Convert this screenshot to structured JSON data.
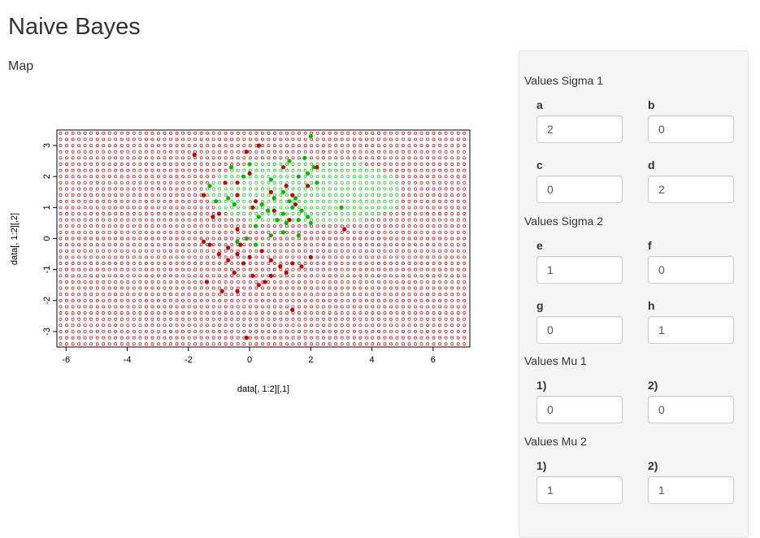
{
  "app": {
    "title": "Naive Bayes"
  },
  "map": {
    "label": "Map"
  },
  "sidebar": {
    "groups": [
      {
        "title": "Values Sigma 1",
        "fields": [
          {
            "label": "a",
            "value": "2"
          },
          {
            "label": "b",
            "value": "0"
          },
          {
            "label": "c",
            "value": "0"
          },
          {
            "label": "d",
            "value": "2"
          }
        ]
      },
      {
        "title": "Values Sigma 2",
        "fields": [
          {
            "label": "e",
            "value": "1"
          },
          {
            "label": "f",
            "value": "0"
          },
          {
            "label": "g",
            "value": "0"
          },
          {
            "label": "h",
            "value": "1"
          }
        ]
      },
      {
        "title": "Values Mu 1",
        "fields": [
          {
            "label": "1)",
            "value": "0"
          },
          {
            "label": "2)",
            "value": "0"
          }
        ]
      },
      {
        "title": "Values Mu 2",
        "fields": [
          {
            "label": "1)",
            "value": "1"
          },
          {
            "label": "2)",
            "value": "1"
          }
        ]
      }
    ]
  },
  "chart_data": {
    "type": "scatter",
    "xlabel": "data[, 1:2][,1]",
    "ylabel": "data[, 1:2][,2]",
    "xlim": [
      -6.3,
      7.2
    ],
    "ylim": [
      -3.5,
      3.5
    ],
    "x_ticks": [
      "-6",
      "-4",
      "-2",
      "0",
      "2",
      "4",
      "6"
    ],
    "y_ticks": [
      "-3",
      "-2",
      "-1",
      "0",
      "1",
      "2",
      "3"
    ],
    "grid": {
      "background_class_color": "#cc0000",
      "region_class_color": "#00cc00",
      "region_ellipse": {
        "center": [
          1.8,
          1.5
        ],
        "radius_x": 3.2,
        "radius_y": 1.1
      }
    },
    "series": [
      {
        "color": "#00bb00",
        "points": [
          [
            0.3,
            3.0
          ],
          [
            2.0,
            3.3
          ],
          [
            1.3,
            2.5
          ],
          [
            1.8,
            2.6
          ],
          [
            2.1,
            2.3
          ],
          [
            0.0,
            2.4
          ],
          [
            -0.6,
            2.3
          ],
          [
            -0.2,
            2.0
          ],
          [
            0.7,
            1.9
          ],
          [
            1.6,
            2.0
          ],
          [
            2.2,
            1.8
          ],
          [
            1.1,
            1.5
          ],
          [
            0.8,
            1.3
          ],
          [
            1.9,
            1.7
          ],
          [
            1.3,
            1.2
          ],
          [
            0.4,
            1.1
          ],
          [
            -0.7,
            1.3
          ],
          [
            -1.1,
            1.2
          ],
          [
            -0.5,
            1.1
          ],
          [
            -1.3,
            1.7
          ],
          [
            0.6,
            0.9
          ],
          [
            1.1,
            0.8
          ],
          [
            1.7,
            0.9
          ],
          [
            3.0,
            1.0
          ],
          [
            0.9,
            0.6
          ],
          [
            1.6,
            0.6
          ],
          [
            1.2,
            0.5
          ],
          [
            1.9,
            0.7
          ],
          [
            0.3,
            0.7
          ],
          [
            1.1,
            0.2
          ],
          [
            1.6,
            0.1
          ],
          [
            0.7,
            0.1
          ],
          [
            -0.1,
            0.0
          ],
          [
            0.2,
            0.4
          ],
          [
            2.0,
            0.5
          ],
          [
            1.4,
            1.0
          ],
          [
            -0.4,
            -0.1
          ],
          [
            0.2,
            -0.2
          ],
          [
            1.5,
            1.3
          ],
          [
            1.9,
            2.1
          ]
        ]
      },
      {
        "color": "#cc0000",
        "points": [
          [
            -1.8,
            2.7
          ],
          [
            -0.1,
            2.8
          ],
          [
            0.3,
            3.0
          ],
          [
            1.1,
            2.3
          ],
          [
            2.2,
            2.3
          ],
          [
            0.0,
            2.1
          ],
          [
            -0.8,
            1.8
          ],
          [
            1.2,
            1.7
          ],
          [
            1.9,
            1.7
          ],
          [
            -1.5,
            1.4
          ],
          [
            -0.4,
            1.4
          ],
          [
            1.4,
            1.4
          ],
          [
            -1.2,
            0.7
          ],
          [
            -1.0,
            0.8
          ],
          [
            0.1,
            1.0
          ],
          [
            0.8,
            0.9
          ],
          [
            1.3,
            0.6
          ],
          [
            -0.4,
            0.3
          ],
          [
            -1.5,
            -0.1
          ],
          [
            -1.3,
            -0.2
          ],
          [
            -0.7,
            -0.3
          ],
          [
            -0.4,
            -0.5
          ],
          [
            0.0,
            -0.6
          ],
          [
            0.4,
            -0.4
          ],
          [
            -1.0,
            -0.5
          ],
          [
            -0.7,
            -0.7
          ],
          [
            -0.2,
            -0.8
          ],
          [
            0.7,
            -0.7
          ],
          [
            1.0,
            -0.9
          ],
          [
            1.4,
            -0.8
          ],
          [
            1.7,
            -0.9
          ],
          [
            2.0,
            -0.6
          ],
          [
            -0.5,
            -1.1
          ],
          [
            0.1,
            -1.2
          ],
          [
            0.7,
            -1.2
          ],
          [
            1.2,
            -1.1
          ],
          [
            -1.4,
            -1.4
          ],
          [
            -0.9,
            -1.7
          ],
          [
            -0.4,
            -1.7
          ],
          [
            0.3,
            -1.5
          ],
          [
            0.5,
            -1.4
          ],
          [
            1.4,
            -2.3
          ],
          [
            -0.1,
            -3.2
          ],
          [
            3.1,
            0.3
          ],
          [
            0.2,
            1.2
          ],
          [
            -0.4,
            1.8
          ],
          [
            1.5,
            1.1
          ],
          [
            -0.3,
            -0.2
          ],
          [
            0.7,
            1.5
          ]
        ]
      }
    ]
  }
}
